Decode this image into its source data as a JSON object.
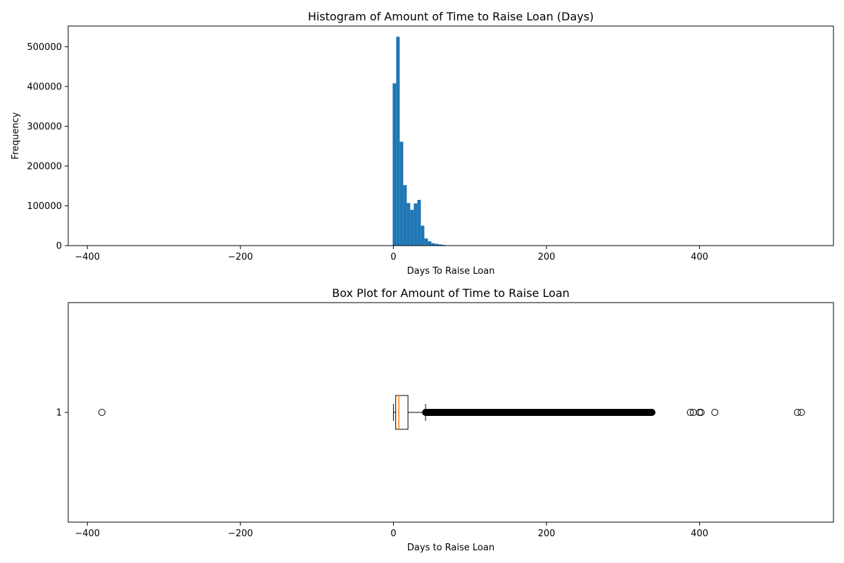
{
  "chart_data": [
    {
      "type": "histogram",
      "title": "Histogram of Amount of Time to Raise Loan (Days)",
      "xlabel": "Days To Raise Loan",
      "ylabel": "Frequency",
      "xlim": [
        -425,
        575
      ],
      "ylim": [
        0,
        552000
      ],
      "xticks": [
        -400,
        -200,
        0,
        200,
        400
      ],
      "yticks": [
        0,
        100000,
        200000,
        300000,
        400000,
        500000
      ],
      "xtick_labels": [
        "−400",
        "−200",
        "0",
        "200",
        "400"
      ],
      "ytick_labels": [
        "0",
        "100000",
        "200000",
        "300000",
        "400000",
        "500000"
      ],
      "bar_color": "#1f77b4",
      "bin_width": 4.6,
      "bins": [
        {
          "x0": -1,
          "value": 408000
        },
        {
          "x0": 3.6,
          "value": 525000
        },
        {
          "x0": 8.2,
          "value": 261000
        },
        {
          "x0": 12.8,
          "value": 152000
        },
        {
          "x0": 17.4,
          "value": 107000
        },
        {
          "x0": 22.0,
          "value": 90000
        },
        {
          "x0": 26.6,
          "value": 106000
        },
        {
          "x0": 31.2,
          "value": 115000
        },
        {
          "x0": 35.8,
          "value": 50000
        },
        {
          "x0": 40.4,
          "value": 18000
        },
        {
          "x0": 45.0,
          "value": 11000
        },
        {
          "x0": 49.6,
          "value": 6000
        },
        {
          "x0": 54.2,
          "value": 4500
        },
        {
          "x0": 58.8,
          "value": 3000
        },
        {
          "x0": 63.4,
          "value": 1800
        },
        {
          "x0": 68.0,
          "value": 900
        },
        {
          "x0": 72.6,
          "value": 500
        },
        {
          "x0": 77.2,
          "value": 300
        }
      ]
    },
    {
      "type": "boxplot",
      "title": "Box Plot for Amount of Time to Raise Loan",
      "xlabel": "Days to Raise Loan",
      "xlim": [
        -425,
        575
      ],
      "xticks": [
        -400,
        -200,
        0,
        200,
        400
      ],
      "xtick_labels": [
        "−400",
        "−200",
        "0",
        "200",
        "400"
      ],
      "ytick_labels": [
        "1"
      ],
      "whisker_low": 0,
      "q1": 3,
      "median": 7,
      "q3": 19,
      "whisker_high": 42,
      "median_color": "#ff7f0e",
      "outlier_range": [
        42,
        338
      ],
      "outliers": [
        -381,
        300,
        305,
        310,
        316,
        320,
        325,
        330,
        334,
        337,
        388,
        392,
        400,
        402,
        420,
        528,
        533
      ]
    }
  ]
}
